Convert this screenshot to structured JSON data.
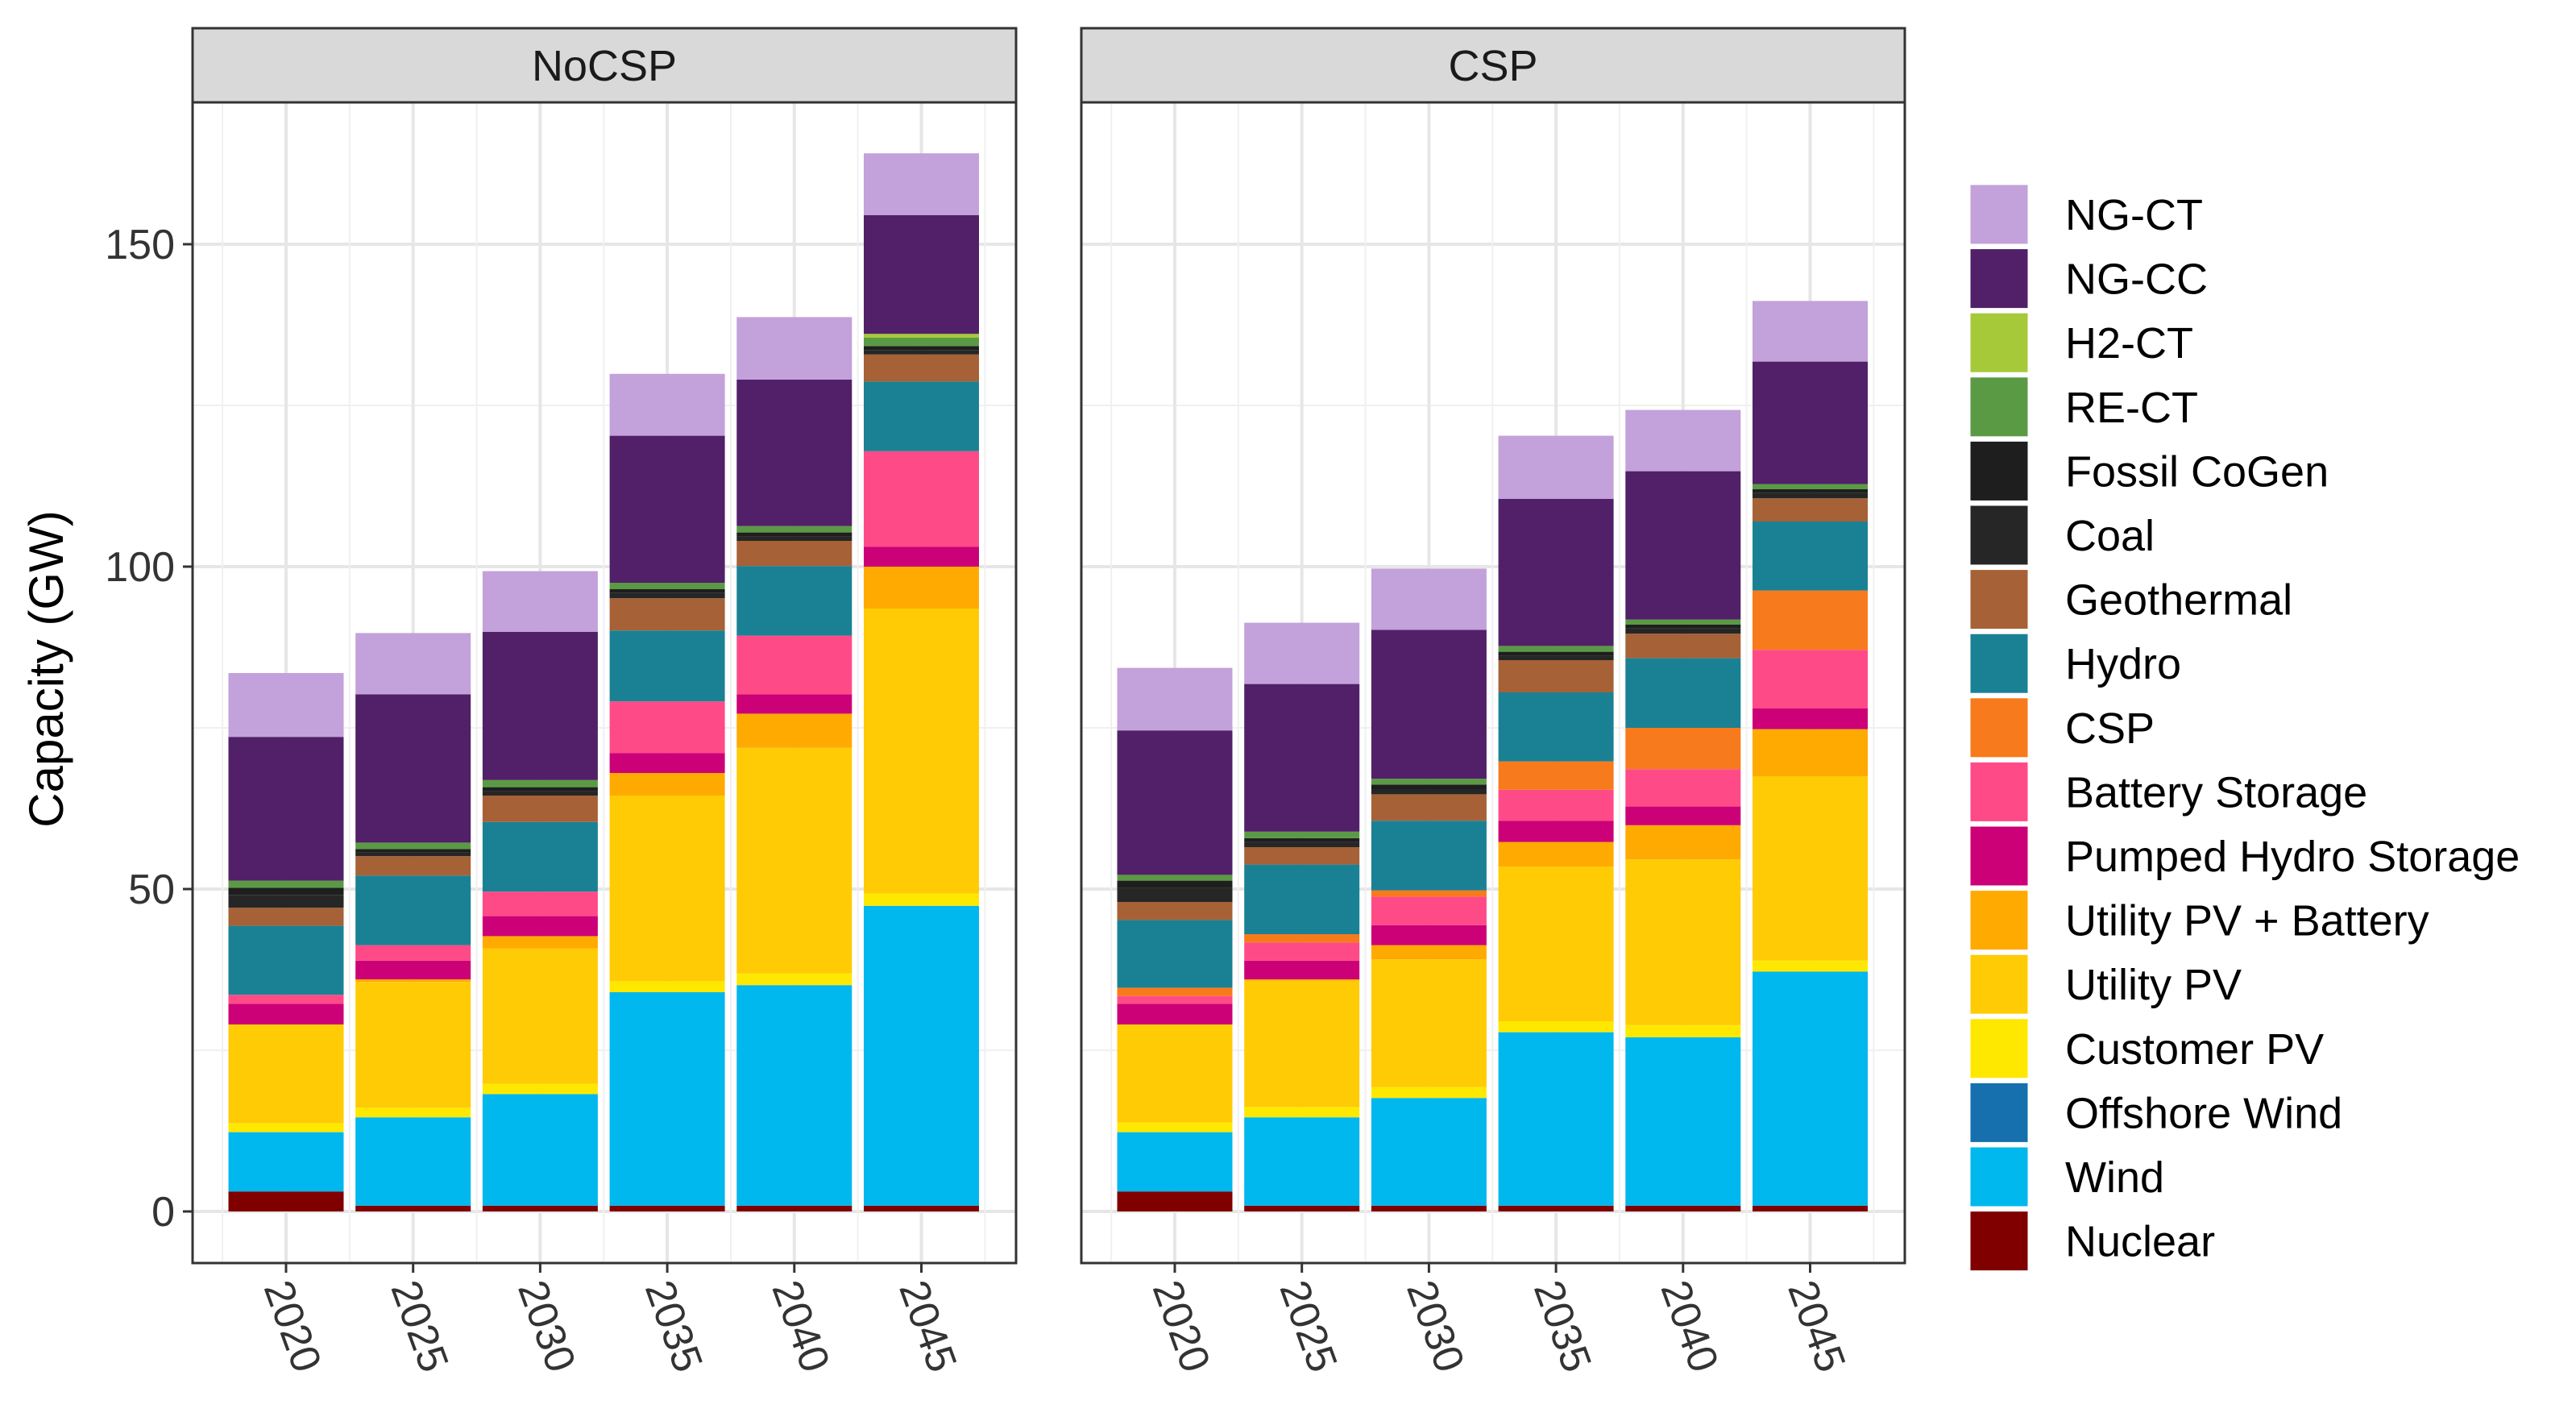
{
  "chart_data": {
    "type": "bar",
    "stacked": true,
    "ylabel": "Capacity (GW)",
    "xlabel": "",
    "ylim": [
      -8,
      172
    ],
    "yticks": [
      0,
      50,
      100,
      150
    ],
    "legend_position": "right",
    "grid": true,
    "categories": [
      "2020",
      "2025",
      "2030",
      "2035",
      "2040",
      "2045"
    ],
    "technologies": [
      {
        "name": "Nuclear",
        "color": "#800000"
      },
      {
        "name": "Wind",
        "color": "#00b7ee"
      },
      {
        "name": "Offshore Wind",
        "color": "#1570ad"
      },
      {
        "name": "Customer PV",
        "color": "#ffe800"
      },
      {
        "name": "Utility PV",
        "color": "#ffcb05"
      },
      {
        "name": "Utility PV + Battery",
        "color": "#ffaa00"
      },
      {
        "name": "Pumped Hydro Storage",
        "color": "#cc0077"
      },
      {
        "name": "Battery Storage",
        "color": "#ff4a88"
      },
      {
        "name": "CSP",
        "color": "#f77a1c"
      },
      {
        "name": "Hydro",
        "color": "#1a8194"
      },
      {
        "name": "Geothermal",
        "color": "#a66137"
      },
      {
        "name": "Coal",
        "color": "#262626"
      },
      {
        "name": "Fossil CoGen",
        "color": "#1e1e1e"
      },
      {
        "name": "RE-CT",
        "color": "#5b9a45"
      },
      {
        "name": "H2-CT",
        "color": "#a6c93a"
      },
      {
        "name": "NG-CC",
        "color": "#512068"
      },
      {
        "name": "NG-CT",
        "color": "#c3a1da"
      }
    ],
    "panels": [
      {
        "title": "NoCSP",
        "series": [
          {
            "name": "Nuclear",
            "values": [
              3.1,
              0.9,
              0.9,
              0.9,
              0.9,
              0.9
            ]
          },
          {
            "name": "Wind",
            "values": [
              9.2,
              13.7,
              17.3,
              33.1,
              34.2,
              46.5
            ]
          },
          {
            "name": "Offshore Wind",
            "values": [
              0,
              0,
              0,
              0,
              0,
              0
            ]
          },
          {
            "name": "Customer PV",
            "values": [
              1.4,
              1.5,
              1.6,
              1.7,
              1.8,
              1.9
            ]
          },
          {
            "name": "Utility PV",
            "values": [
              15.3,
              19.5,
              21.0,
              28.8,
              35.0,
              44.2
            ]
          },
          {
            "name": "Utility PV + Battery",
            "values": [
              0,
              0.4,
              1.9,
              3.5,
              5.3,
              6.5
            ]
          },
          {
            "name": "Pumped Hydro Storage",
            "values": [
              3.2,
              2.9,
              3.1,
              3.1,
              3.0,
              3.1
            ]
          },
          {
            "name": "Battery Storage",
            "values": [
              1.4,
              2.4,
              3.8,
              8.0,
              9.1,
              14.8
            ]
          },
          {
            "name": "CSP",
            "values": [
              0,
              0,
              0,
              0,
              0,
              0
            ]
          },
          {
            "name": "Hydro",
            "values": [
              10.7,
              10.8,
              10.8,
              11.0,
              10.8,
              10.8
            ]
          },
          {
            "name": "Geothermal",
            "values": [
              2.8,
              3.0,
              4.1,
              5.0,
              3.9,
              4.2
            ]
          },
          {
            "name": "Coal",
            "values": [
              2.0,
              0.6,
              0.7,
              0.8,
              0.7,
              0.7
            ]
          },
          {
            "name": "Fossil CoGen",
            "values": [
              1.1,
              0.5,
              0.6,
              0.6,
              0.6,
              0.6
            ]
          },
          {
            "name": "RE-CT",
            "values": [
              1.1,
              1.0,
              1.1,
              1.0,
              1.0,
              1.3
            ]
          },
          {
            "name": "H2-CT",
            "values": [
              0,
              0,
              0,
              0,
              0,
              0.6
            ]
          },
          {
            "name": "NG-CC",
            "values": [
              22.3,
              23.0,
              23.0,
              22.8,
              22.7,
              18.4
            ]
          },
          {
            "name": "NG-CT",
            "values": [
              9.9,
              9.5,
              9.4,
              9.6,
              9.7,
              9.6
            ]
          }
        ]
      },
      {
        "title": "CSP",
        "series": [
          {
            "name": "Nuclear",
            "values": [
              3.1,
              0.9,
              0.9,
              0.9,
              0.9,
              0.9
            ]
          },
          {
            "name": "Wind",
            "values": [
              9.2,
              13.7,
              16.7,
              26.9,
              26.1,
              36.3
            ]
          },
          {
            "name": "Offshore Wind",
            "values": [
              0,
              0,
              0,
              0,
              0,
              0
            ]
          },
          {
            "name": "Customer PV",
            "values": [
              1.5,
              1.6,
              1.7,
              1.7,
              1.9,
              1.7
            ]
          },
          {
            "name": "Utility PV",
            "values": [
              15.2,
              19.6,
              19.8,
              24.0,
              25.7,
              28.6
            ]
          },
          {
            "name": "Utility PV + Battery",
            "values": [
              0,
              0.2,
              2.2,
              3.8,
              5.3,
              7.3
            ]
          },
          {
            "name": "Pumped Hydro Storage",
            "values": [
              3.2,
              2.9,
              3.1,
              3.3,
              2.9,
              3.2
            ]
          },
          {
            "name": "Battery Storage",
            "values": [
              1.2,
              2.8,
              4.4,
              4.8,
              5.8,
              9.1
            ]
          },
          {
            "name": "CSP",
            "values": [
              1.3,
              1.3,
              1.0,
              4.4,
              6.4,
              9.2
            ]
          },
          {
            "name": "Hydro",
            "values": [
              10.5,
              10.8,
              10.8,
              10.7,
              10.8,
              10.7
            ]
          },
          {
            "name": "Geothermal",
            "values": [
              2.8,
              2.7,
              4.1,
              5.0,
              3.8,
              3.6
            ]
          },
          {
            "name": "Coal",
            "values": [
              2.2,
              0.8,
              0.8,
              0.7,
              0.8,
              0.8
            ]
          },
          {
            "name": "Fossil CoGen",
            "values": [
              1.1,
              0.6,
              0.7,
              0.6,
              0.6,
              0.6
            ]
          },
          {
            "name": "RE-CT",
            "values": [
              0.9,
              1.0,
              0.9,
              0.9,
              0.8,
              0.8
            ]
          },
          {
            "name": "H2-CT",
            "values": [
              0,
              0,
              0,
              0,
              0,
              0
            ]
          },
          {
            "name": "NG-CC",
            "values": [
              22.4,
              22.9,
              23.1,
              22.8,
              23.0,
              19.0
            ]
          },
          {
            "name": "NG-CT",
            "values": [
              9.7,
              9.5,
              9.5,
              9.8,
              9.5,
              9.4
            ]
          }
        ]
      }
    ],
    "legend_order": [
      "NG-CT",
      "NG-CC",
      "H2-CT",
      "RE-CT",
      "Fossil CoGen",
      "Coal",
      "Geothermal",
      "Hydro",
      "CSP",
      "Battery Storage",
      "Pumped Hydro Storage",
      "Utility PV + Battery",
      "Utility PV",
      "Customer PV",
      "Offshore Wind",
      "Wind",
      "Nuclear"
    ]
  }
}
